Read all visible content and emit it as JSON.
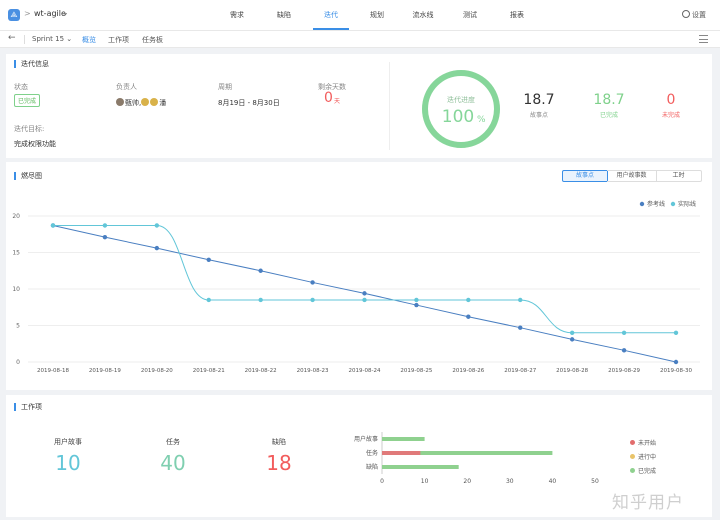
{
  "header": {
    "logo": "⟁",
    "breadcrumb_sep": ">",
    "project": "wt-agile",
    "nav": [
      {
        "label": "需求",
        "active": false
      },
      {
        "label": "缺陷",
        "active": false
      },
      {
        "label": "迭代",
        "active": true
      },
      {
        "label": "规划",
        "active": false
      },
      {
        "label": "流水线",
        "active": false
      },
      {
        "label": "测试",
        "active": false
      },
      {
        "label": "报表",
        "active": false
      }
    ],
    "settings": "设置"
  },
  "subbar": {
    "back": "←",
    "sprint": "Sprint 15",
    "tabs": [
      {
        "label": "概览",
        "active": true
      },
      {
        "label": "工作项",
        "active": false
      },
      {
        "label": "任务板",
        "active": false
      }
    ]
  },
  "overview": {
    "title": "迭代信息",
    "status_label": "状态",
    "status_value": "已完成",
    "owner_label": "负责人",
    "owner_value": "甄帅,",
    "owner_extra": "潘",
    "period_label": "周期",
    "period_value": "8月19日 - 8月30日",
    "remain_label": "剩余天数",
    "remain_value": "0",
    "remain_unit": "天",
    "goal_label": "迭代目标:",
    "goal_value": "完成权限功能",
    "progress_label": "迭代进度",
    "progress_value": "100",
    "progress_unit": "%",
    "progress_fraction": 1.0,
    "stats": [
      {
        "value": "18.7",
        "label": "故事点",
        "color": "#333333"
      },
      {
        "value": "18.7",
        "label": "已完成",
        "color": "#7fd18b"
      },
      {
        "value": "0",
        "label": "未完成",
        "color": "#f25c5c"
      }
    ]
  },
  "burndown": {
    "title": "燃尽图",
    "segments": [
      {
        "label": "故事点",
        "active": true
      },
      {
        "label": "用户故事数",
        "active": false
      },
      {
        "label": "工时",
        "active": false
      }
    ]
  },
  "chart_data": [
    {
      "type": "line",
      "x": [
        "2019-08-18",
        "2019-08-19",
        "2019-08-20",
        "2019-08-21",
        "2019-08-22",
        "2019-08-23",
        "2019-08-24",
        "2019-08-25",
        "2019-08-26",
        "2019-08-27",
        "2019-08-28",
        "2019-08-29",
        "2019-08-30"
      ],
      "series": [
        {
          "name": "参考线",
          "color": "#4a7fc1",
          "values": [
            18.7,
            17.1,
            15.6,
            14.0,
            12.5,
            10.9,
            9.4,
            7.8,
            6.2,
            4.7,
            3.1,
            1.6,
            0
          ]
        },
        {
          "name": "实际线",
          "color": "#62c6d8",
          "values": [
            18.7,
            18.7,
            18.7,
            8.5,
            8.5,
            8.5,
            8.5,
            8.5,
            8.5,
            8.5,
            4.0,
            4.0,
            4.0
          ]
        }
      ],
      "yticks": [
        0,
        5,
        10,
        15,
        20
      ],
      "ylim": [
        0,
        20
      ],
      "grid": true,
      "legend": "top-right"
    },
    {
      "type": "bar",
      "orientation": "horizontal",
      "stacked": true,
      "categories": [
        "用户故事",
        "任务",
        "缺陷"
      ],
      "series": [
        {
          "name": "未开始",
          "color": "#e26d6d",
          "values": [
            0,
            0,
            0
          ]
        },
        {
          "name": "进行中",
          "color": "#e9c46a",
          "values": [
            0,
            0,
            0
          ]
        },
        {
          "name": "已完成",
          "color": "#8fd18f",
          "values": [
            10,
            40,
            18
          ]
        }
      ],
      "highlight": {
        "category": "任务",
        "value": 9,
        "color": "#e07a7a"
      },
      "xticks": [
        0,
        10,
        20,
        30,
        40,
        50
      ],
      "xlim": [
        0,
        50
      ],
      "legend": "right"
    }
  ],
  "workitems": {
    "title": "工作项",
    "counts": [
      {
        "label": "用户故事",
        "value": "10",
        "color": "#62c6d8"
      },
      {
        "label": "任务",
        "value": "40",
        "color": "#7fcfb0"
      },
      {
        "label": "缺陷",
        "value": "18",
        "color": "#f25c5c"
      }
    ]
  },
  "watermark": "知乎用户"
}
